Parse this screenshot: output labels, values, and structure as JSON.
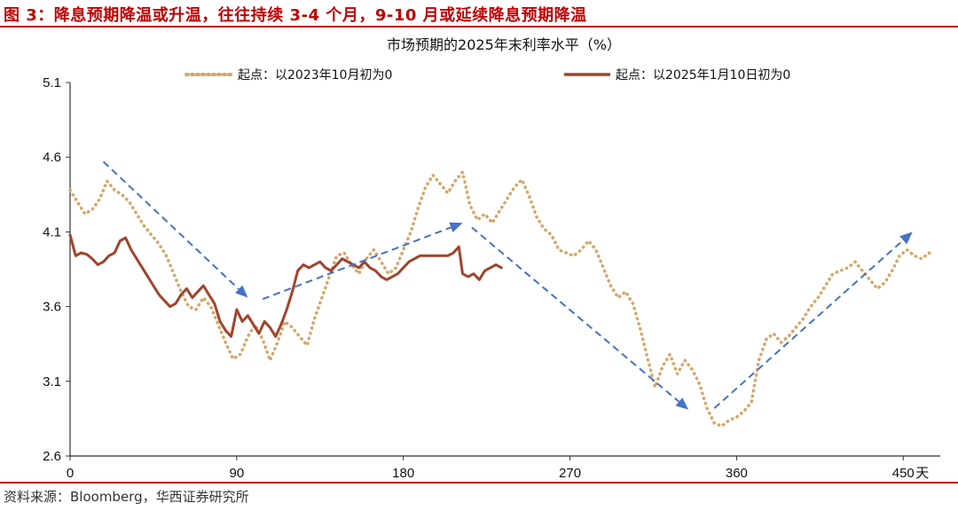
{
  "figure": {
    "title": "图 3：降息预期降温或升温，往往持续 3-4 个月，9-10 月或延续降息预期降温",
    "source": "资料来源：Bloomberg，华西证券研究所"
  },
  "colors": {
    "accent_red": "#c00000",
    "series_2023": "#d4a76a",
    "series_2025": "#a0442c",
    "arrows": "#4472c4"
  },
  "chart_data": {
    "type": "line",
    "title": "市场预期的2025年末利率水平（%）",
    "xlabel": "",
    "ylabel": "",
    "x_unit_label": "天",
    "xlim": [
      0,
      470
    ],
    "ylim": [
      2.6,
      5.1
    ],
    "xticks": [
      0,
      90,
      180,
      270,
      360,
      450
    ],
    "yticks": [
      2.6,
      3.1,
      3.6,
      4.1,
      4.6,
      5.1
    ],
    "legend_position": "top",
    "series": [
      {
        "name": "起点：以2023年10月初为0",
        "style": "dotted",
        "color": "#d4a76a",
        "points": [
          [
            0,
            4.38
          ],
          [
            4,
            4.3
          ],
          [
            8,
            4.22
          ],
          [
            12,
            4.25
          ],
          [
            16,
            4.32
          ],
          [
            20,
            4.44
          ],
          [
            24,
            4.38
          ],
          [
            28,
            4.35
          ],
          [
            32,
            4.3
          ],
          [
            36,
            4.22
          ],
          [
            40,
            4.14
          ],
          [
            44,
            4.08
          ],
          [
            48,
            4.02
          ],
          [
            52,
            3.94
          ],
          [
            56,
            3.82
          ],
          [
            60,
            3.7
          ],
          [
            64,
            3.6
          ],
          [
            68,
            3.58
          ],
          [
            72,
            3.66
          ],
          [
            76,
            3.6
          ],
          [
            80,
            3.48
          ],
          [
            84,
            3.36
          ],
          [
            88,
            3.25
          ],
          [
            92,
            3.28
          ],
          [
            96,
            3.4
          ],
          [
            100,
            3.48
          ],
          [
            104,
            3.38
          ],
          [
            108,
            3.24
          ],
          [
            112,
            3.36
          ],
          [
            116,
            3.5
          ],
          [
            120,
            3.46
          ],
          [
            124,
            3.4
          ],
          [
            128,
            3.34
          ],
          [
            132,
            3.52
          ],
          [
            136,
            3.66
          ],
          [
            140,
            3.8
          ],
          [
            144,
            3.94
          ],
          [
            148,
            3.96
          ],
          [
            152,
            3.88
          ],
          [
            156,
            3.82
          ],
          [
            160,
            3.92
          ],
          [
            164,
            3.98
          ],
          [
            168,
            3.9
          ],
          [
            172,
            3.82
          ],
          [
            176,
            3.86
          ],
          [
            180,
            3.98
          ],
          [
            184,
            4.1
          ],
          [
            188,
            4.26
          ],
          [
            192,
            4.4
          ],
          [
            196,
            4.48
          ],
          [
            200,
            4.42
          ],
          [
            204,
            4.36
          ],
          [
            208,
            4.44
          ],
          [
            212,
            4.5
          ],
          [
            216,
            4.28
          ],
          [
            220,
            4.18
          ],
          [
            224,
            4.22
          ],
          [
            228,
            4.16
          ],
          [
            232,
            4.24
          ],
          [
            236,
            4.32
          ],
          [
            240,
            4.4
          ],
          [
            244,
            4.45
          ],
          [
            248,
            4.34
          ],
          [
            252,
            4.2
          ],
          [
            256,
            4.12
          ],
          [
            260,
            4.08
          ],
          [
            264,
            3.98
          ],
          [
            268,
            3.96
          ],
          [
            272,
            3.94
          ],
          [
            276,
            3.98
          ],
          [
            280,
            4.04
          ],
          [
            284,
            3.98
          ],
          [
            288,
            3.86
          ],
          [
            292,
            3.74
          ],
          [
            296,
            3.66
          ],
          [
            300,
            3.7
          ],
          [
            304,
            3.62
          ],
          [
            308,
            3.45
          ],
          [
            312,
            3.25
          ],
          [
            316,
            3.06
          ],
          [
            320,
            3.2
          ],
          [
            324,
            3.28
          ],
          [
            328,
            3.15
          ],
          [
            332,
            3.24
          ],
          [
            336,
            3.18
          ],
          [
            340,
            3.08
          ],
          [
            344,
            2.92
          ],
          [
            348,
            2.82
          ],
          [
            352,
            2.8
          ],
          [
            356,
            2.84
          ],
          [
            360,
            2.86
          ],
          [
            364,
            2.9
          ],
          [
            368,
            2.96
          ],
          [
            372,
            3.24
          ],
          [
            376,
            3.38
          ],
          [
            380,
            3.42
          ],
          [
            384,
            3.36
          ],
          [
            388,
            3.4
          ],
          [
            392,
            3.46
          ],
          [
            396,
            3.52
          ],
          [
            400,
            3.6
          ],
          [
            404,
            3.66
          ],
          [
            408,
            3.74
          ],
          [
            412,
            3.82
          ],
          [
            416,
            3.84
          ],
          [
            420,
            3.86
          ],
          [
            424,
            3.9
          ],
          [
            428,
            3.84
          ],
          [
            432,
            3.78
          ],
          [
            436,
            3.72
          ],
          [
            440,
            3.76
          ],
          [
            444,
            3.84
          ],
          [
            448,
            3.94
          ],
          [
            452,
            3.98
          ],
          [
            456,
            3.94
          ],
          [
            460,
            3.92
          ],
          [
            464,
            3.96
          ],
          [
            466,
            3.94
          ]
        ]
      },
      {
        "name": "起点：以2025年1月10日初为0",
        "style": "solid",
        "color": "#a0442c",
        "points": [
          [
            0,
            4.08
          ],
          [
            3,
            3.94
          ],
          [
            6,
            3.96
          ],
          [
            9,
            3.95
          ],
          [
            12,
            3.92
          ],
          [
            15,
            3.88
          ],
          [
            18,
            3.9
          ],
          [
            21,
            3.94
          ],
          [
            24,
            3.96
          ],
          [
            27,
            4.04
          ],
          [
            30,
            4.06
          ],
          [
            33,
            3.98
          ],
          [
            36,
            3.92
          ],
          [
            39,
            3.86
          ],
          [
            42,
            3.8
          ],
          [
            45,
            3.74
          ],
          [
            48,
            3.68
          ],
          [
            51,
            3.64
          ],
          [
            54,
            3.6
          ],
          [
            57,
            3.62
          ],
          [
            60,
            3.68
          ],
          [
            63,
            3.72
          ],
          [
            66,
            3.66
          ],
          [
            69,
            3.7
          ],
          [
            72,
            3.74
          ],
          [
            75,
            3.68
          ],
          [
            78,
            3.62
          ],
          [
            81,
            3.5
          ],
          [
            84,
            3.44
          ],
          [
            87,
            3.4
          ],
          [
            90,
            3.58
          ],
          [
            93,
            3.5
          ],
          [
            96,
            3.54
          ],
          [
            99,
            3.48
          ],
          [
            102,
            3.42
          ],
          [
            105,
            3.5
          ],
          [
            108,
            3.46
          ],
          [
            111,
            3.4
          ],
          [
            114,
            3.48
          ],
          [
            117,
            3.58
          ],
          [
            120,
            3.7
          ],
          [
            123,
            3.84
          ],
          [
            126,
            3.88
          ],
          [
            129,
            3.86
          ],
          [
            132,
            3.88
          ],
          [
            135,
            3.9
          ],
          [
            138,
            3.86
          ],
          [
            141,
            3.84
          ],
          [
            144,
            3.88
          ],
          [
            147,
            3.92
          ],
          [
            150,
            3.9
          ],
          [
            153,
            3.88
          ],
          [
            156,
            3.86
          ],
          [
            159,
            3.9
          ],
          [
            162,
            3.86
          ],
          [
            165,
            3.84
          ],
          [
            168,
            3.8
          ],
          [
            171,
            3.78
          ],
          [
            174,
            3.8
          ],
          [
            177,
            3.82
          ],
          [
            180,
            3.86
          ],
          [
            183,
            3.9
          ],
          [
            186,
            3.92
          ],
          [
            189,
            3.94
          ],
          [
            192,
            3.94
          ],
          [
            195,
            3.94
          ],
          [
            198,
            3.94
          ],
          [
            201,
            3.94
          ],
          [
            204,
            3.94
          ],
          [
            207,
            3.96
          ],
          [
            210,
            4.0
          ],
          [
            212,
            3.82
          ],
          [
            215,
            3.8
          ],
          [
            218,
            3.82
          ],
          [
            221,
            3.78
          ],
          [
            224,
            3.84
          ],
          [
            227,
            3.86
          ],
          [
            230,
            3.88
          ],
          [
            233,
            3.86
          ]
        ]
      }
    ],
    "annotations": [
      {
        "type": "arrow",
        "from": [
          18,
          4.57
        ],
        "to": [
          96,
          3.66
        ]
      },
      {
        "type": "arrow",
        "from": [
          104,
          3.65
        ],
        "to": [
          212,
          4.16
        ]
      },
      {
        "type": "arrow",
        "from": [
          217,
          4.13
        ],
        "to": [
          334,
          2.91
        ]
      },
      {
        "type": "arrow",
        "from": [
          348,
          2.92
        ],
        "to": [
          455,
          4.1
        ]
      }
    ]
  }
}
